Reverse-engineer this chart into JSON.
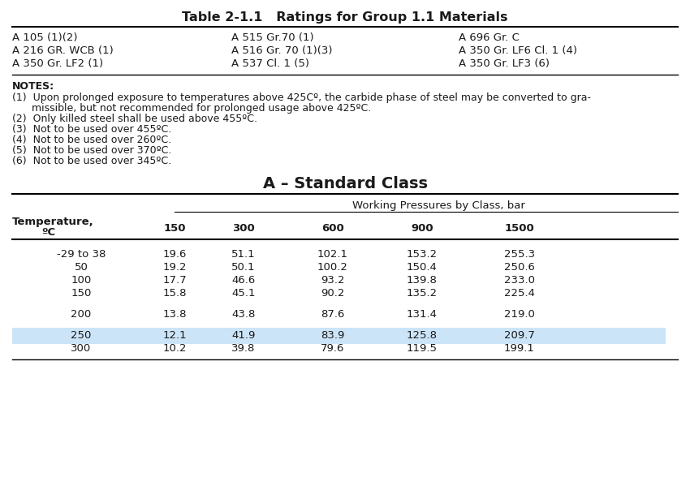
{
  "title": "Table 2-1.1   Ratings for Group 1.1 Materials",
  "materials_col1": [
    "A 105 (1)(2)",
    "A 216 GR. WCB (1)",
    "A 350 Gr. LF2 (1)"
  ],
  "materials_col2": [
    "A 515 Gr.70 (1)",
    "A 516 Gr. 70 (1)(3)",
    "A 537 Cl. 1 (5)"
  ],
  "materials_col3": [
    "A 696 Gr. C",
    "A 350 Gr. LF6 Cl. 1 (4)",
    "A 350 Gr. LF3 (6)"
  ],
  "notes_header": "NOTES:",
  "note_lines": [
    "(1)  Upon prolonged exposure to temperatures above 425Cº, the carbide phase of steel may be converted to gra-",
    "      missible, but not recommended for prolonged usage above 425ºC.",
    "(2)  Only killed steel shall be used above 455ºC.",
    "(3)  Not to be used over 455ºC.",
    "(4)  Not to be used over 260ºC.",
    "(5)  Not to be used over 370ºC.",
    "(6)  Not to be used over 345ºC."
  ],
  "section_title": "A – Standard Class",
  "col_header_span": "Working Pressures by Class, bar",
  "temp_label_line1": "Temperature,",
  "temp_label_line2": "ºC",
  "class_headers": [
    "150",
    "300",
    "600",
    "900",
    "1500"
  ],
  "table_data": [
    [
      "-29 to 38",
      "19.6",
      "51.1",
      "102.1",
      "153.2",
      "255.3"
    ],
    [
      "50",
      "19.2",
      "50.1",
      "100.2",
      "150.4",
      "250.6"
    ],
    [
      "100",
      "17.7",
      "46.6",
      "93.2",
      "139.8",
      "233.0"
    ],
    [
      "150",
      "15.8",
      "45.1",
      "90.2",
      "135.2",
      "225.4"
    ],
    [
      "200",
      "13.8",
      "43.8",
      "87.6",
      "131.4",
      "219.0"
    ],
    [
      "250",
      "12.1",
      "41.9",
      "83.9",
      "125.8",
      "209.7"
    ],
    [
      "300",
      "10.2",
      "39.8",
      "79.6",
      "119.5",
      "199.1"
    ]
  ],
  "highlighted_row": 5,
  "highlight_color": "#cce4f7",
  "bg_color": "#ffffff",
  "text_color": "#1a1a1a",
  "title_fontsize": 11.5,
  "body_fontsize": 9.5,
  "notes_fontsize": 9.0,
  "section_title_fontsize": 14,
  "fig_w": 8.5,
  "fig_h": 6.2,
  "dpi": 100
}
